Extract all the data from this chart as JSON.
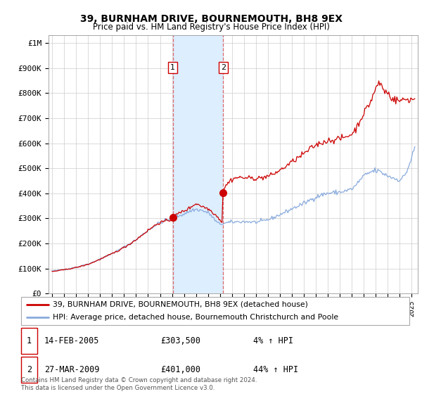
{
  "title": "39, BURNHAM DRIVE, BOURNEMOUTH, BH8 9EX",
  "subtitle": "Price paid vs. HM Land Registry's House Price Index (HPI)",
  "ylabel_ticks": [
    "£0",
    "£100K",
    "£200K",
    "£300K",
    "£400K",
    "£500K",
    "£600K",
    "£700K",
    "£800K",
    "£900K",
    "£1M"
  ],
  "ytick_vals": [
    0,
    100000,
    200000,
    300000,
    400000,
    500000,
    600000,
    700000,
    800000,
    900000,
    1000000
  ],
  "xlim": [
    1994.7,
    2025.5
  ],
  "ylim": [
    0,
    1030000
  ],
  "transaction1_x": 2005.11,
  "transaction1_y": 303500,
  "transaction2_x": 2009.24,
  "transaction2_y": 401000,
  "shade_color": "#ddeeff",
  "red_line_color": "#cc0000",
  "blue_line_color": "#88aadd",
  "legend_label_red": "39, BURNHAM DRIVE, BOURNEMOUTH, BH8 9EX (detached house)",
  "legend_label_blue": "HPI: Average price, detached house, Bournemouth Christchurch and Poole",
  "transaction_table": [
    {
      "num": "1",
      "date": "14-FEB-2005",
      "price": "£303,500",
      "hpi": "4% ↑ HPI"
    },
    {
      "num": "2",
      "date": "27-MAR-2009",
      "price": "£401,000",
      "hpi": "44% ↑ HPI"
    }
  ],
  "footer": "Contains HM Land Registry data © Crown copyright and database right 2024.\nThis data is licensed under the Open Government Licence v3.0.",
  "background_color": "#ffffff",
  "grid_color": "#cccccc"
}
